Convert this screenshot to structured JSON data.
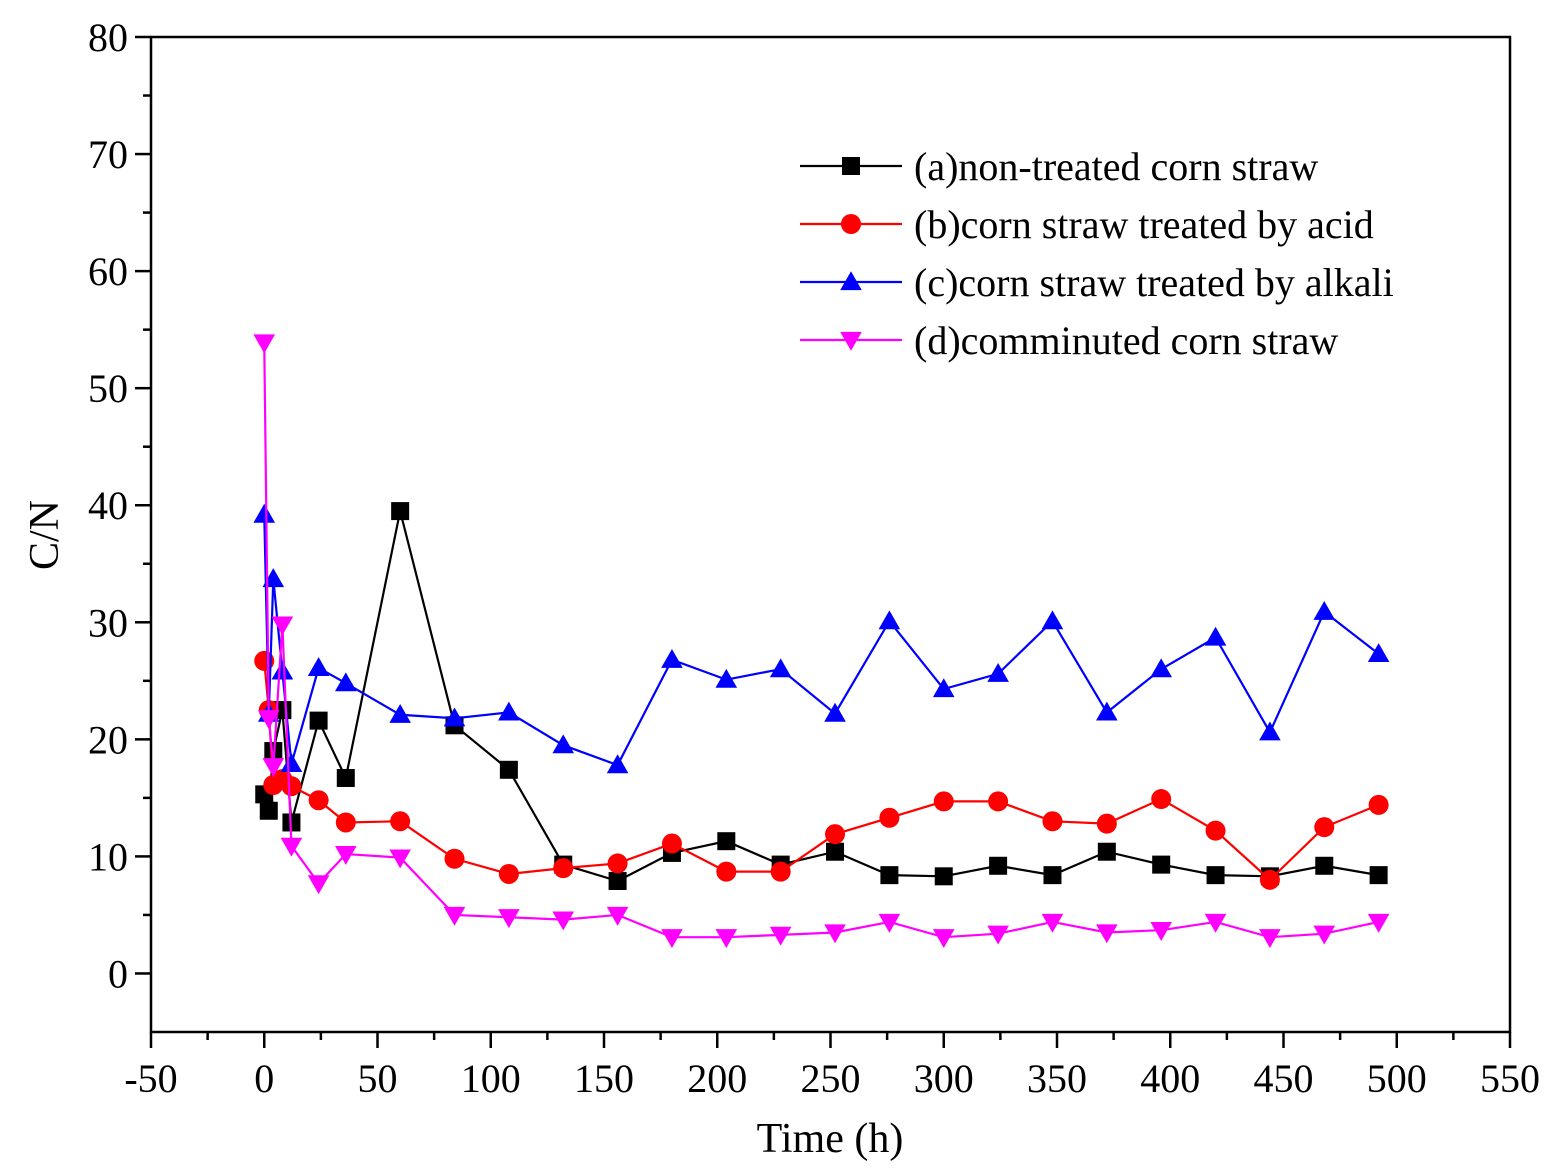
{
  "chart_data": {
    "type": "line",
    "title": "",
    "xlabel": "Time (h)",
    "ylabel": "C/N",
    "xlim": [
      -50,
      550
    ],
    "ylim": [
      -5,
      80
    ],
    "xticks": [
      -50,
      0,
      50,
      100,
      150,
      200,
      250,
      300,
      350,
      400,
      450,
      500,
      550
    ],
    "yticks": [
      0,
      10,
      20,
      30,
      40,
      50,
      60,
      70,
      80
    ],
    "grid": false,
    "legend_position": "top-right",
    "series": [
      {
        "name": "(a)non-treated corn straw",
        "color": "#000000",
        "marker": "square",
        "x": [
          0,
          2,
          4,
          8,
          12,
          24,
          36,
          60,
          84,
          108,
          132,
          156,
          180,
          204,
          228,
          252,
          276,
          300,
          324,
          348,
          372,
          396,
          420,
          444,
          468,
          492
        ],
        "y": [
          15.3,
          13.9,
          19,
          22.5,
          12.9,
          21.6,
          16.7,
          39.5,
          21.2,
          17.4,
          9.3,
          7.9,
          10.3,
          11.3,
          9.3,
          10.4,
          8.4,
          8.3,
          9.2,
          8.4,
          10.4,
          9.3,
          8.4,
          8.3,
          9.2,
          8.4
        ]
      },
      {
        "name": "(b)corn straw treated by acid",
        "color": "#ff0000",
        "marker": "circle",
        "x": [
          0,
          2,
          4,
          8,
          12,
          24,
          36,
          60,
          84,
          108,
          132,
          156,
          180,
          204,
          228,
          252,
          276,
          300,
          324,
          348,
          372,
          396,
          420,
          444,
          468,
          492
        ],
        "y": [
          26.7,
          22.5,
          16.1,
          16.6,
          16,
          14.8,
          12.9,
          13,
          9.8,
          8.5,
          9,
          9.4,
          11.1,
          8.7,
          8.7,
          11.9,
          13.3,
          14.7,
          14.7,
          13,
          12.8,
          14.9,
          12.2,
          8,
          12.5,
          14.4
        ]
      },
      {
        "name": "(c)corn straw treated by alkali",
        "color": "#0000ff",
        "marker": "triangle-up",
        "x": [
          0,
          2,
          4,
          8,
          12,
          24,
          36,
          60,
          84,
          108,
          132,
          156,
          180,
          204,
          228,
          252,
          276,
          300,
          324,
          348,
          372,
          396,
          420,
          444,
          468,
          492
        ],
        "y": [
          39.2,
          22.2,
          33.7,
          25.8,
          17.9,
          26.1,
          24.8,
          22.1,
          21.8,
          22.3,
          19.5,
          17.8,
          26.8,
          25.1,
          26,
          22.2,
          30.1,
          24.3,
          25.6,
          30.1,
          22.3,
          26,
          28.7,
          20.6,
          30.9,
          27.3
        ]
      },
      {
        "name": "(d)comminuted corn straw",
        "color": "#ff00ff",
        "marker": "triangle-down",
        "x": [
          0,
          2,
          4,
          8,
          12,
          24,
          36,
          60,
          84,
          108,
          132,
          156,
          180,
          204,
          228,
          252,
          276,
          300,
          324,
          348,
          372,
          396,
          420,
          444,
          468,
          492
        ],
        "y": [
          53.9,
          21.8,
          17.7,
          29.8,
          10.9,
          7.7,
          10.2,
          9.9,
          5,
          4.8,
          4.6,
          5,
          3.1,
          3.1,
          3.3,
          3.5,
          4.4,
          3.1,
          3.4,
          4.4,
          3.5,
          3.7,
          4.4,
          3.1,
          3.4,
          4.4
        ]
      }
    ]
  }
}
